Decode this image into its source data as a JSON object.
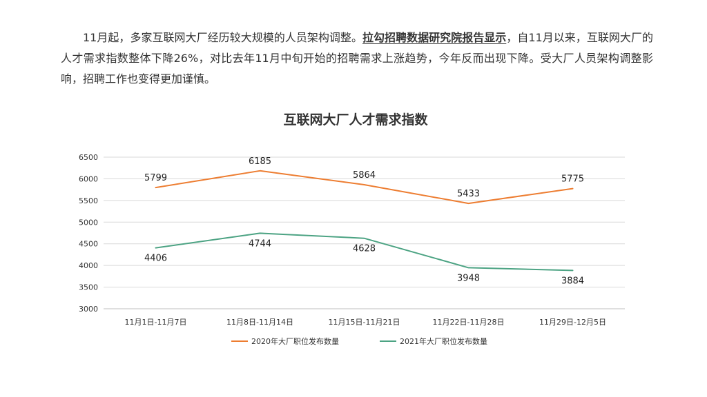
{
  "intro": {
    "part1": "11月起，多家互联网大厂经历较大规模的人员架构调整。",
    "highlight": "拉勾招聘数据研究院报告显示",
    "part2": "，自11月以来，互联网大厂的人才需求指数整体下降26%，对比去年11月中旬开始的招聘需求上涨趋势，今年反而出现下降。受大厂人员架构调整影响，招聘工作也变得更加谨慎。"
  },
  "chart_data": {
    "type": "line",
    "title": "互联网大厂人才需求指数",
    "categories": [
      "11月1日-11月7日",
      "11月8日-11月14日",
      "11月15日-11月21日",
      "11月22日-11月28日",
      "11月29日-12月5日"
    ],
    "series": [
      {
        "name": "2020年大厂职位发布数量",
        "values": [
          5799,
          6185,
          5864,
          5433,
          5775
        ],
        "color": "#ED7D31",
        "label_pos": [
          "above",
          "above",
          "above",
          "above",
          "above"
        ]
      },
      {
        "name": "2021年大厂职位发布数量",
        "values": [
          4406,
          4744,
          4628,
          3948,
          3884
        ],
        "color": "#4CA383",
        "label_pos": [
          "below",
          "below",
          "below",
          "below",
          "below"
        ]
      }
    ],
    "ylim": [
      3000,
      6500
    ],
    "yticks": [
      3000,
      3500,
      4000,
      4500,
      5000,
      5500,
      6000,
      6500
    ],
    "grid": true,
    "legend": "bottom",
    "xlabel": "",
    "ylabel": ""
  }
}
